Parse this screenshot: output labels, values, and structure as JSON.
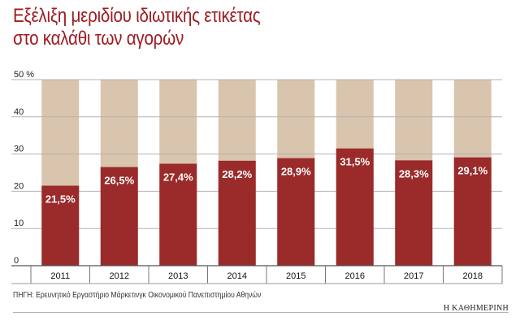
{
  "title_lines": [
    "Εξέλιξη μεριδίου ιδιωτικής ετικέτας",
    "στο καλάθι των αγορών"
  ],
  "source": "ΠΗΓΗ: Ερευνητικό Εργαστήριο Μάρκετινγκ Οικονομικού Πανεπιστημίου Αθηνών",
  "brand": "Η ΚΑΘΗΜΕΡΙΝΗ",
  "colors": {
    "title": "#9e1c22",
    "bar": "#9b2a2a",
    "track": "#d9c4ad",
    "grid": "#b3b3b3",
    "label": "#ffffff"
  },
  "chart_data": {
    "type": "bar",
    "title": "Εξέλιξη μεριδίου ιδιωτικής ετικέτας στο καλάθι των αγορών",
    "categories": [
      "2011",
      "2012",
      "2013",
      "2014",
      "2015",
      "2016",
      "2017",
      "2018"
    ],
    "values": [
      21.5,
      26.5,
      27.4,
      28.2,
      28.9,
      31.5,
      28.3,
      29.1
    ],
    "value_labels": [
      "21,5%",
      "26,5%",
      "27,4%",
      "28,2%",
      "28,9%",
      "31,5%",
      "28,3%",
      "29,1%"
    ],
    "ylim": [
      0,
      50
    ],
    "yticks": [
      0,
      10,
      20,
      30,
      40,
      50
    ],
    "ytick_labels": [
      "0",
      "10",
      "20",
      "30",
      "40",
      "50 %"
    ],
    "xlabel": "",
    "ylabel": "",
    "grid": true
  }
}
